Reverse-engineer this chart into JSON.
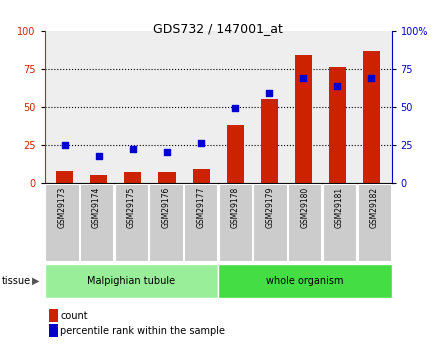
{
  "title": "GDS732 / 147001_at",
  "categories": [
    "GSM29173",
    "GSM29174",
    "GSM29175",
    "GSM29176",
    "GSM29177",
    "GSM29178",
    "GSM29179",
    "GSM29180",
    "GSM29181",
    "GSM29182"
  ],
  "counts": [
    8,
    5,
    7,
    7,
    9,
    38,
    55,
    84,
    76,
    87
  ],
  "percentiles": [
    25,
    18,
    22,
    20,
    26,
    49,
    59,
    69,
    64,
    69
  ],
  "tissue_groups": [
    {
      "label": "Malpighian tubule",
      "start": 0,
      "end": 5,
      "color": "#99ee99"
    },
    {
      "label": "whole organism",
      "start": 5,
      "end": 10,
      "color": "#44dd44"
    }
  ],
  "ylim": [
    0,
    100
  ],
  "bar_color": "#cc2200",
  "dot_color": "#0000cc",
  "grid_color": "#000000",
  "left_tick_color": "#cc2200",
  "right_tick_color": "#0000cc",
  "bg_color": "#ffffff",
  "plot_bg_color": "#eeeeee",
  "xlabel_bg_color": "#cccccc",
  "tissue_border_color": "#ffffff",
  "legend_count_color": "#cc2200",
  "legend_pct_color": "#0000cc",
  "tissue_label": "tissue",
  "legend_count_label": "count",
  "legend_pct_label": "percentile rank within the sample"
}
